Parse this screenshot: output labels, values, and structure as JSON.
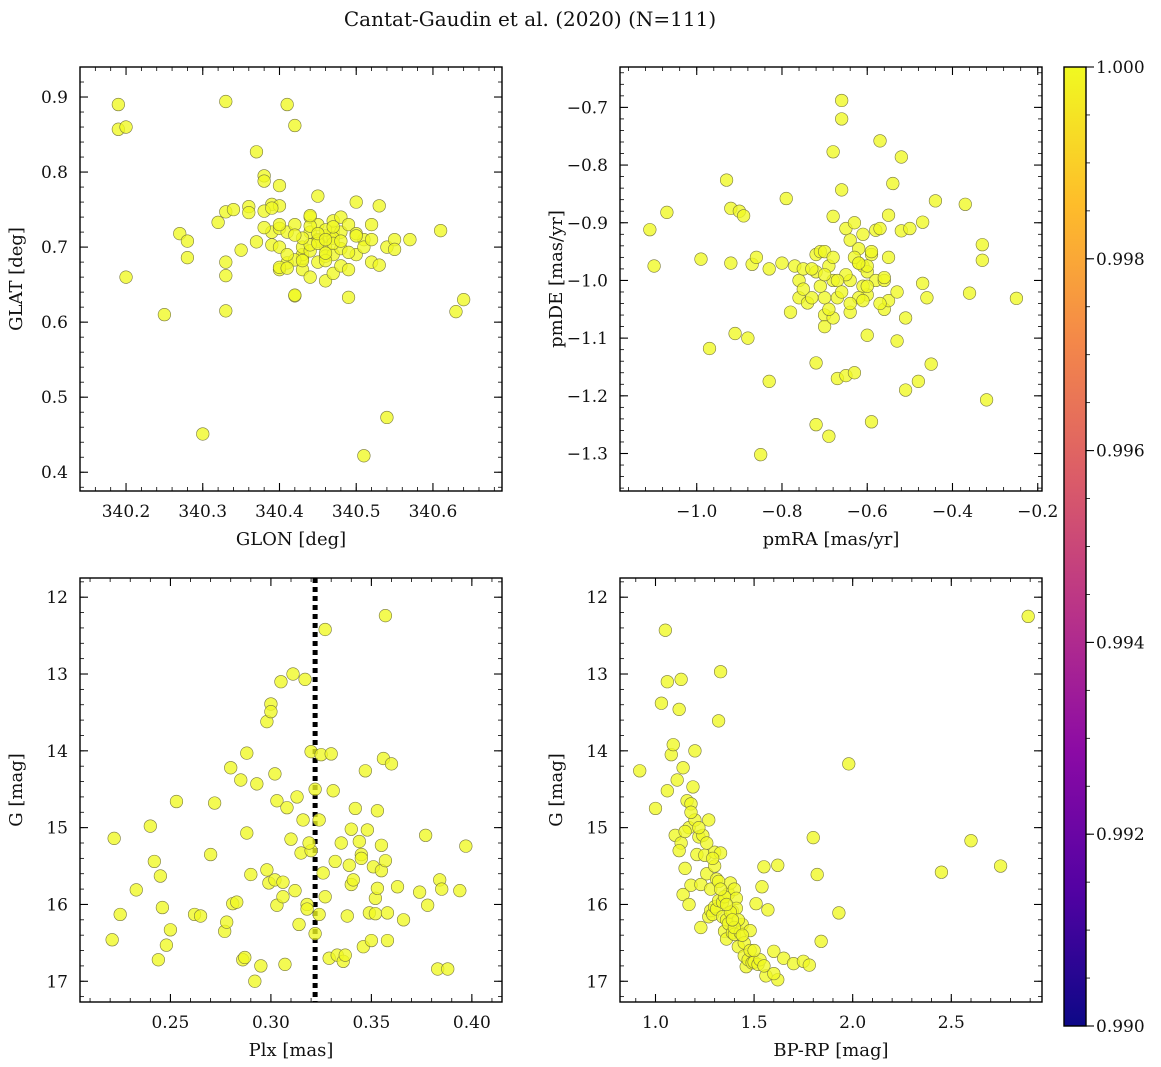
{
  "figure": {
    "title": "Cantat-Gaudin et al. (2020) (N=111)"
  },
  "colorbar": {
    "min": 0.99,
    "max": 1.0,
    "tick_values": [
      0.99,
      0.992,
      0.994,
      0.996,
      0.998,
      1.0
    ],
    "tick_labels": [
      "0.990",
      "0.992",
      "0.994",
      "0.996",
      "0.998",
      "1.000"
    ],
    "colors": [
      "#0d0887",
      "#5302a3",
      "#8b0aa5",
      "#b83289",
      "#db5c68",
      "#f48849",
      "#febd2a",
      "#f0f921"
    ]
  },
  "chart_data": [
    {
      "type": "scatter",
      "xlabel": "GLON [deg]",
      "ylabel": "GLAT [deg]",
      "xlim": [
        340.14,
        340.69
      ],
      "ylim": [
        0.375,
        0.94
      ],
      "invert_y": false,
      "x_ticks": [
        340.2,
        340.3,
        340.4,
        340.5,
        340.6
      ],
      "x_tick_labels": [
        "340.2",
        "340.3",
        "340.4",
        "340.5",
        "340.6"
      ],
      "y_ticks": [
        0.4,
        0.5,
        0.6,
        0.7,
        0.8,
        0.9
      ],
      "y_tick_labels": [
        "0.4",
        "0.5",
        "0.6",
        "0.7",
        "0.8",
        "0.9"
      ],
      "x": [
        340.19,
        340.19,
        340.2,
        340.2,
        340.25,
        340.27,
        340.28,
        340.28,
        340.3,
        340.32,
        340.33,
        340.33,
        340.33,
        340.33,
        340.34,
        340.35,
        340.36,
        340.37,
        340.37,
        340.38,
        340.38,
        340.39,
        340.39,
        340.39,
        340.4,
        340.4,
        340.4,
        340.4,
        340.4,
        340.41,
        340.41,
        340.41,
        340.42,
        340.42,
        340.42,
        340.42,
        340.43,
        340.43,
        340.43,
        340.43,
        340.44,
        340.44,
        340.44,
        340.44,
        340.45,
        340.45,
        340.45,
        340.45,
        340.46,
        340.46,
        340.46,
        340.46,
        340.47,
        340.47,
        340.47,
        340.47,
        340.48,
        340.48,
        340.48,
        340.49,
        340.49,
        340.49,
        340.5,
        340.5,
        340.51,
        340.51,
        340.52,
        340.53,
        340.53,
        340.54,
        340.54,
        340.55,
        340.57,
        340.61,
        340.63,
        340.64,
        340.33,
        340.38,
        340.4,
        340.45,
        340.42,
        340.47,
        340.44,
        340.46,
        340.48,
        340.51,
        340.52,
        340.36,
        340.39,
        340.41,
        340.43,
        340.45,
        340.46,
        340.49,
        340.5,
        340.44,
        340.47,
        340.42,
        340.4,
        340.48,
        340.46,
        340.43,
        340.45,
        340.52,
        340.41,
        340.44,
        340.47,
        340.38,
        340.5,
        340.55,
        340.46
      ],
      "y": [
        0.89,
        0.857,
        0.86,
        0.66,
        0.61,
        0.718,
        0.686,
        0.708,
        0.451,
        0.733,
        0.68,
        0.662,
        0.747,
        0.615,
        0.75,
        0.696,
        0.754,
        0.827,
        0.707,
        0.795,
        0.788,
        0.757,
        0.72,
        0.703,
        0.782,
        0.67,
        0.7,
        0.725,
        0.755,
        0.679,
        0.72,
        0.89,
        0.73,
        0.862,
        0.635,
        0.636,
        0.67,
        0.685,
        0.69,
        0.7,
        0.72,
        0.74,
        0.66,
        0.695,
        0.71,
        0.68,
        0.73,
        0.768,
        0.7,
        0.655,
        0.715,
        0.688,
        0.72,
        0.69,
        0.735,
        0.665,
        0.675,
        0.72,
        0.74,
        0.633,
        0.67,
        0.73,
        0.69,
        0.76,
        0.422,
        0.71,
        0.68,
        0.755,
        0.676,
        0.473,
        0.7,
        0.71,
        0.71,
        0.722,
        0.614,
        0.63,
        0.894,
        0.748,
        0.73,
        0.708,
        0.683,
        0.712,
        0.703,
        0.723,
        0.698,
        0.7,
        0.73,
        0.746,
        0.752,
        0.69,
        0.712,
        0.705,
        0.682,
        0.693,
        0.718,
        0.728,
        0.705,
        0.716,
        0.673,
        0.708,
        0.692,
        0.682,
        0.718,
        0.71,
        0.672,
        0.742,
        0.727,
        0.726,
        0.715,
        0.697,
        0.71
      ]
    },
    {
      "type": "scatter",
      "xlabel": "pmRA [mas/yr]",
      "ylabel": "pmDE [mas/yr]",
      "xlim": [
        -1.18,
        -0.19
      ],
      "ylim": [
        -1.365,
        -0.63
      ],
      "invert_y": false,
      "x_ticks": [
        -1.0,
        -0.8,
        -0.6,
        -0.4,
        -0.2
      ],
      "x_tick_labels": [
        "−1.0",
        "−0.8",
        "−0.6",
        "−0.4",
        "−0.2"
      ],
      "y_ticks": [
        -1.3,
        -1.2,
        -1.1,
        -1.0,
        -0.9,
        -0.8,
        -0.7
      ],
      "y_tick_labels": [
        "−1.3",
        "−1.2",
        "−1.1",
        "−1.0",
        "−0.9",
        "−0.8",
        "−0.7"
      ],
      "x": [
        -1.11,
        -1.1,
        -1.07,
        -0.99,
        -0.97,
        -0.93,
        -0.92,
        -0.92,
        -0.91,
        -0.9,
        -0.89,
        -0.88,
        -0.87,
        -0.86,
        -0.85,
        -0.83,
        -0.83,
        -0.79,
        -0.78,
        -0.77,
        -0.76,
        -0.76,
        -0.74,
        -0.73,
        -0.72,
        -0.72,
        -0.72,
        -0.71,
        -0.7,
        -0.7,
        -0.7,
        -0.69,
        -0.69,
        -0.68,
        -0.68,
        -0.68,
        -0.67,
        -0.67,
        -0.66,
        -0.66,
        -0.66,
        -0.65,
        -0.65,
        -0.64,
        -0.64,
        -0.63,
        -0.63,
        -0.62,
        -0.62,
        -0.61,
        -0.61,
        -0.6,
        -0.6,
        -0.6,
        -0.59,
        -0.58,
        -0.58,
        -0.57,
        -0.57,
        -0.56,
        -0.56,
        -0.55,
        -0.55,
        -0.54,
        -0.53,
        -0.52,
        -0.52,
        -0.51,
        -0.51,
        -0.5,
        -0.48,
        -0.47,
        -0.47,
        -0.46,
        -0.45,
        -0.44,
        -0.37,
        -0.36,
        -0.33,
        -0.33,
        -0.32,
        -0.25,
        -0.8,
        -0.75,
        -0.7,
        -0.64,
        -0.61,
        -0.59,
        -0.57,
        -0.55,
        -0.53,
        -0.65,
        -0.68,
        -0.62,
        -0.6,
        -0.72,
        -0.69,
        -0.63,
        -0.67,
        -0.71,
        -0.66,
        -0.59,
        -0.7,
        -0.64,
        -0.62,
        -0.6,
        -0.68,
        -0.73,
        -0.75,
        -0.61,
        -0.56
      ],
      "y": [
        -0.912,
        -0.975,
        -0.882,
        -0.963,
        -1.118,
        -0.826,
        -0.875,
        -0.97,
        -1.092,
        -0.88,
        -0.888,
        -1.1,
        -0.972,
        -0.96,
        -1.302,
        -0.98,
        -1.175,
        -0.858,
        -1.055,
        -0.975,
        -1.0,
        -1.03,
        -1.039,
        -1.03,
        -0.955,
        -1.143,
        -1.25,
        -0.95,
        -1.03,
        -1.06,
        -0.95,
        -1.27,
        -0.975,
        -0.889,
        -0.777,
        -1.0,
        -1.03,
        -1.17,
        -0.843,
        -0.72,
        -0.688,
        -0.91,
        -1.165,
        -1.055,
        -0.93,
        -1.16,
        -0.9,
        -0.945,
        -0.97,
        -0.92,
        -0.975,
        -1.095,
        -1.025,
        -0.985,
        -1.245,
        -0.913,
        -1.0,
        -0.91,
        -0.758,
        -1.0,
        -1.05,
        -0.887,
        -1.035,
        -0.832,
        -1.105,
        -0.786,
        -0.914,
        -1.065,
        -1.19,
        -0.91,
        -1.175,
        -1.005,
        -0.899,
        -1.03,
        -1.145,
        -0.862,
        -0.868,
        -1.022,
        -0.938,
        -0.965,
        -1.207,
        -1.031,
        -0.97,
        -0.98,
        -1.08,
        -1.0,
        -1.01,
        -0.955,
        -1.04,
        -0.96,
        -1.02,
        -0.99,
        -1.065,
        -1.03,
        -0.975,
        -0.985,
        -1.05,
        -0.96,
        -1.0,
        -1.01,
        -1.02,
        -0.95,
        -0.99,
        -1.04,
        -0.97,
        -1.01,
        -0.96,
        -0.98,
        -1.015,
        -1.035,
        -0.995
      ]
    },
    {
      "type": "scatter",
      "xlabel": "Plx [mas]",
      "ylabel": "G [mag]",
      "xlim": [
        0.205,
        0.415
      ],
      "ylim": [
        17.27,
        11.75
      ],
      "invert_y": true,
      "x_ticks": [
        0.25,
        0.3,
        0.35,
        0.4
      ],
      "x_tick_labels": [
        "0.25",
        "0.30",
        "0.35",
        "0.40"
      ],
      "y_ticks": [
        12,
        13,
        14,
        15,
        16,
        17
      ],
      "y_tick_labels": [
        "12",
        "13",
        "14",
        "15",
        "16",
        "17"
      ],
      "vline": {
        "x": 0.322,
        "style": "dotted"
      },
      "x": [
        0.221,
        0.222,
        0.225,
        0.233,
        0.24,
        0.242,
        0.244,
        0.245,
        0.246,
        0.248,
        0.25,
        0.253,
        0.262,
        0.265,
        0.27,
        0.272,
        0.277,
        0.278,
        0.28,
        0.281,
        0.283,
        0.285,
        0.286,
        0.287,
        0.288,
        0.288,
        0.29,
        0.292,
        0.293,
        0.295,
        0.298,
        0.299,
        0.3,
        0.3,
        0.302,
        0.303,
        0.303,
        0.305,
        0.306,
        0.307,
        0.308,
        0.31,
        0.311,
        0.312,
        0.314,
        0.315,
        0.316,
        0.317,
        0.318,
        0.318,
        0.32,
        0.32,
        0.322,
        0.322,
        0.324,
        0.325,
        0.326,
        0.327,
        0.329,
        0.33,
        0.331,
        0.332,
        0.333,
        0.336,
        0.337,
        0.338,
        0.339,
        0.34,
        0.34,
        0.341,
        0.342,
        0.344,
        0.345,
        0.346,
        0.347,
        0.348,
        0.349,
        0.35,
        0.351,
        0.352,
        0.352,
        0.353,
        0.353,
        0.355,
        0.355,
        0.356,
        0.357,
        0.357,
        0.358,
        0.358,
        0.36,
        0.363,
        0.366,
        0.374,
        0.377,
        0.378,
        0.383,
        0.384,
        0.385,
        0.388,
        0.394,
        0.397,
        0.324,
        0.319,
        0.313,
        0.306,
        0.335,
        0.345,
        0.302,
        0.298,
        0.327
      ],
      "y": [
        16.46,
        15.14,
        16.13,
        15.81,
        14.98,
        15.44,
        16.72,
        15.63,
        16.04,
        16.53,
        16.33,
        14.66,
        16.13,
        16.15,
        15.35,
        14.68,
        16.35,
        16.23,
        14.22,
        15.99,
        15.97,
        14.38,
        16.72,
        16.69,
        15.07,
        14.03,
        15.61,
        17.0,
        14.43,
        16.8,
        13.62,
        15.72,
        13.39,
        13.49,
        15.68,
        14.65,
        16.01,
        13.1,
        15.71,
        16.78,
        14.74,
        15.15,
        13.0,
        15.82,
        16.26,
        15.33,
        14.9,
        13.07,
        16.0,
        16.06,
        14.01,
        15.3,
        16.38,
        14.5,
        16.13,
        14.05,
        15.59,
        12.42,
        16.7,
        14.04,
        14.52,
        15.44,
        16.66,
        16.74,
        16.66,
        16.15,
        15.49,
        15.02,
        15.74,
        15.68,
        14.75,
        15.18,
        15.35,
        16.55,
        14.26,
        15.03,
        16.11,
        16.47,
        15.51,
        16.12,
        15.92,
        15.79,
        14.78,
        15.23,
        15.56,
        14.1,
        12.24,
        15.43,
        16.47,
        16.11,
        14.17,
        15.77,
        16.2,
        15.84,
        15.1,
        16.01,
        16.84,
        15.68,
        15.8,
        16.84,
        15.82,
        15.24,
        14.9,
        15.2,
        14.6,
        15.9,
        15.2,
        15.4,
        14.3,
        15.55,
        15.9
      ],
      "color_values": [
        1.0,
        1.0,
        1.0,
        1.0,
        1.0,
        1.0,
        1.0,
        1.0,
        1.0,
        1.0,
        1.0,
        1.0,
        1.0,
        1.0,
        1.0,
        1.0,
        1.0,
        1.0,
        1.0,
        1.0,
        1.0,
        1.0,
        1.0,
        1.0,
        1.0,
        1.0,
        1.0,
        1.0,
        1.0,
        1.0,
        1.0,
        1.0,
        1.0,
        1.0,
        1.0,
        1.0,
        1.0,
        1.0,
        1.0,
        1.0,
        1.0,
        1.0,
        1.0,
        1.0,
        1.0,
        1.0,
        1.0,
        1.0,
        1.0,
        1.0,
        1.0,
        1.0,
        1.0,
        1.0,
        1.0,
        1.0,
        1.0,
        1.0,
        1.0,
        1.0,
        1.0,
        1.0,
        1.0,
        1.0,
        1.0,
        1.0,
        1.0,
        1.0,
        1.0,
        1.0,
        1.0,
        1.0,
        1.0,
        1.0,
        1.0,
        1.0,
        1.0,
        1.0,
        1.0,
        1.0,
        1.0,
        1.0,
        1.0,
        1.0,
        1.0,
        1.0,
        1.0,
        1.0,
        1.0,
        1.0,
        1.0,
        1.0,
        1.0,
        1.0,
        1.0,
        1.0,
        1.0,
        1.0,
        1.0,
        1.0,
        1.0,
        1.0,
        1.0,
        1.0,
        1.0,
        1.0,
        1.0,
        1.0,
        1.0,
        1.0,
        1.0
      ]
    },
    {
      "type": "scatter",
      "xlabel": "BP-RP [mag]",
      "ylabel": "G [mag]",
      "xlim": [
        0.82,
        2.96
      ],
      "ylim": [
        17.27,
        11.75
      ],
      "invert_y": true,
      "x_ticks": [
        1.0,
        1.5,
        2.0,
        2.5
      ],
      "x_tick_labels": [
        "1.0",
        "1.5",
        "2.0",
        "2.5"
      ],
      "y_ticks": [
        12,
        13,
        14,
        15,
        16,
        17
      ],
      "y_tick_labels": [
        "12",
        "13",
        "14",
        "15",
        "16",
        "17"
      ],
      "x": [
        0.92,
        1.0,
        1.03,
        1.05,
        1.06,
        1.06,
        1.08,
        1.09,
        1.1,
        1.11,
        1.12,
        1.13,
        1.13,
        1.14,
        1.14,
        1.15,
        1.16,
        1.17,
        1.17,
        1.18,
        1.18,
        1.19,
        1.2,
        1.21,
        1.22,
        1.23,
        1.23,
        1.25,
        1.26,
        1.27,
        1.28,
        1.28,
        1.29,
        1.3,
        1.3,
        1.31,
        1.31,
        1.32,
        1.32,
        1.33,
        1.33,
        1.34,
        1.34,
        1.35,
        1.36,
        1.36,
        1.37,
        1.37,
        1.38,
        1.39,
        1.39,
        1.4,
        1.4,
        1.41,
        1.41,
        1.42,
        1.43,
        1.44,
        1.45,
        1.46,
        1.47,
        1.48,
        1.49,
        1.5,
        1.51,
        1.52,
        1.53,
        1.54,
        1.55,
        1.56,
        1.57,
        1.6,
        1.62,
        1.62,
        1.65,
        1.7,
        1.75,
        1.78,
        1.8,
        1.82,
        1.84,
        1.93,
        1.98,
        2.45,
        2.6,
        2.75,
        2.89,
        1.12,
        1.15,
        1.2,
        1.24,
        1.27,
        1.32,
        1.35,
        1.38,
        1.42,
        1.45,
        1.48,
        1.3,
        1.26,
        1.22,
        1.18,
        1.36,
        1.4,
        1.44,
        1.5,
        1.55,
        1.6,
        1.33,
        1.29,
        1.39
      ],
      "y": [
        14.26,
        14.75,
        13.38,
        12.43,
        13.1,
        14.52,
        14.05,
        13.92,
        15.1,
        14.38,
        13.46,
        13.07,
        15.2,
        14.22,
        15.87,
        15.53,
        14.65,
        15.0,
        16.0,
        15.75,
        14.69,
        14.47,
        14.0,
        15.35,
        15.12,
        16.3,
        15.74,
        15.36,
        15.6,
        16.16,
        15.8,
        16.08,
        16.13,
        15.32,
        16.03,
        16.06,
        15.67,
        13.61,
        15.95,
        15.33,
        12.97,
        15.97,
        16.16,
        16.35,
        16.45,
        16.2,
        15.86,
        16.25,
        15.72,
        16.09,
        16.37,
        15.8,
        16.39,
        15.92,
        16.05,
        16.55,
        16.37,
        16.26,
        16.67,
        16.81,
        16.72,
        16.34,
        16.76,
        16.75,
        15.99,
        16.78,
        16.72,
        15.77,
        15.51,
        16.93,
        16.07,
        16.61,
        16.98,
        15.49,
        16.7,
        16.77,
        16.74,
        16.79,
        15.13,
        15.61,
        16.48,
        16.11,
        14.17,
        15.58,
        15.17,
        15.5,
        12.25,
        15.3,
        15.05,
        14.9,
        15.1,
        14.9,
        15.7,
        15.9,
        16.1,
        16.2,
        16.5,
        16.6,
        15.5,
        15.2,
        15.0,
        14.8,
        16.0,
        16.3,
        16.4,
        16.6,
        16.8,
        16.9,
        15.8,
        15.4,
        16.2
      ]
    }
  ]
}
